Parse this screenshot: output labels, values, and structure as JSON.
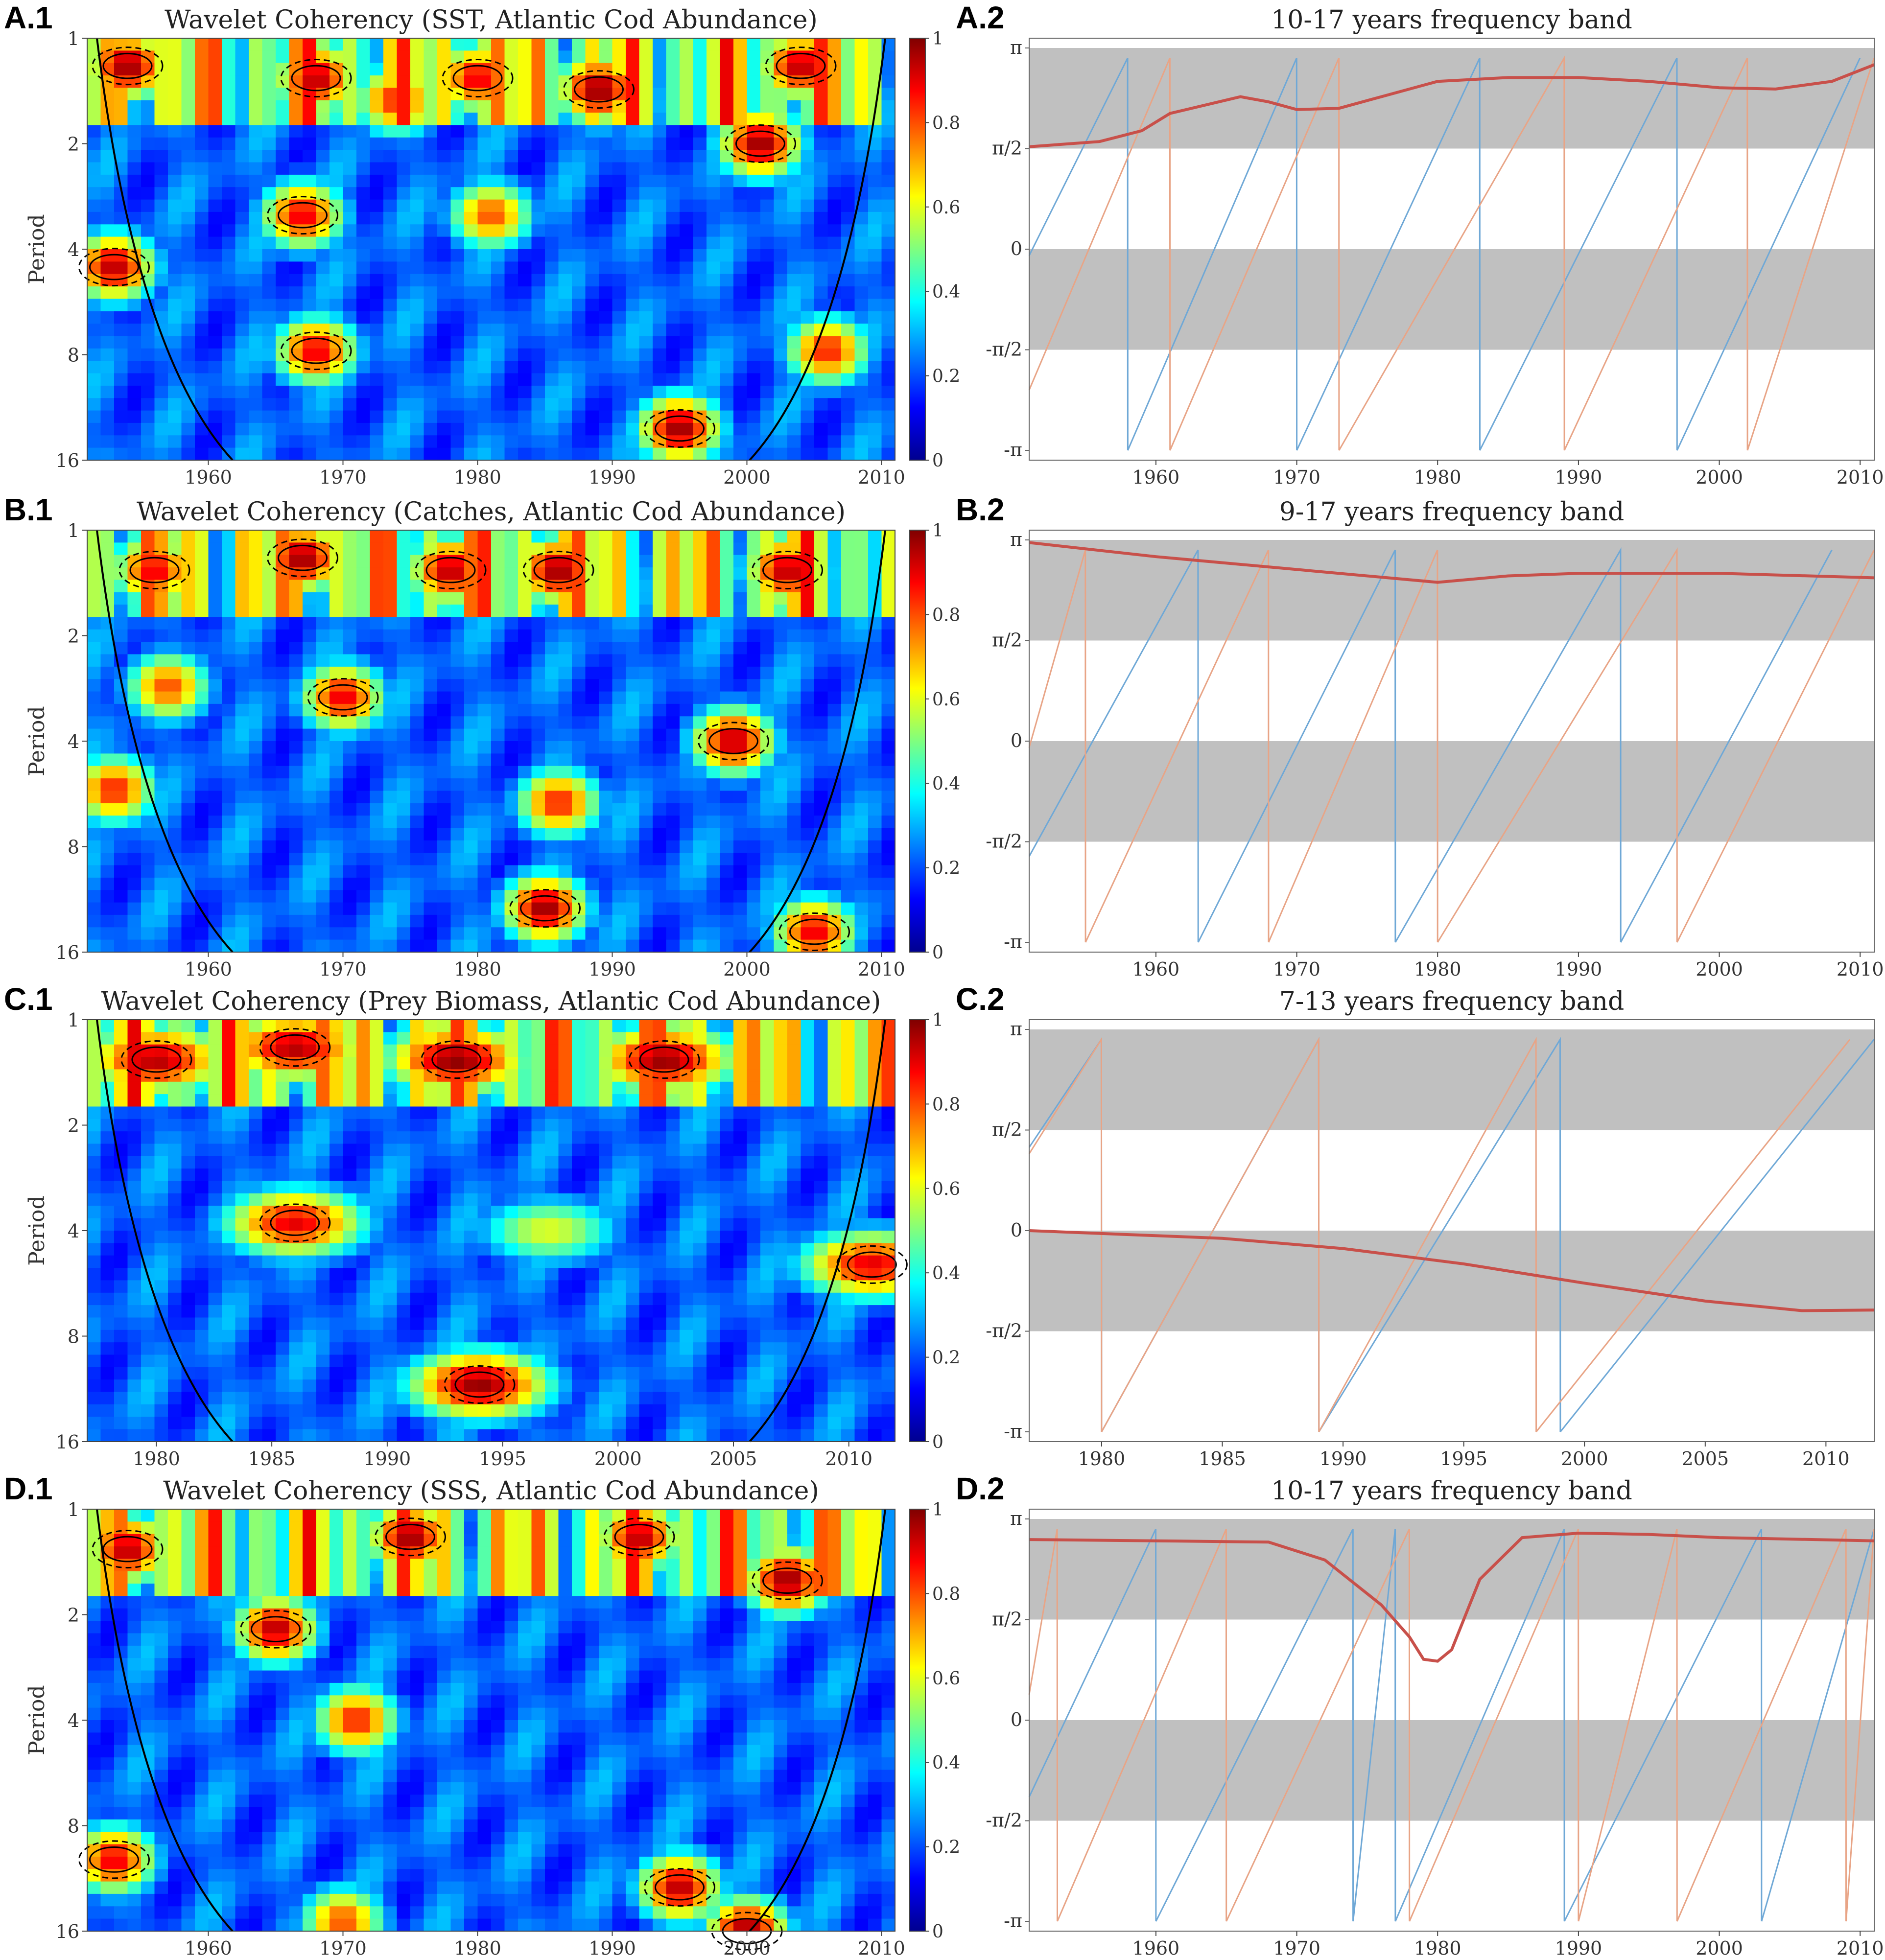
{
  "colors": {
    "phase_band": "#c0c0c0",
    "mean_phase": "#c8504a",
    "series_blue": "#6fa8d6",
    "series_orange": "#e8a486",
    "contour": "#000000"
  },
  "colorbar_ticks": [
    "0",
    "0.2",
    "0.4",
    "0.6",
    "0.8",
    "1"
  ],
  "phase_tick_labels": [
    "π",
    "π/2",
    "0",
    "-π/2",
    "-π"
  ],
  "period_ylabel": "Period",
  "period_ticks": [
    "1",
    "2",
    "4",
    "8",
    "16"
  ],
  "panels": [
    {
      "label": "A.1",
      "title": "Wavelet Coherency (SST, Atlantic Cod Abundance)",
      "xticks": [
        "1960",
        "1970",
        "1980",
        "1990",
        "2000",
        "2010"
      ]
    },
    {
      "label": "A.2",
      "title": "10-17 years frequency band",
      "xticks": [
        "1960",
        "1970",
        "1980",
        "1990",
        "2000",
        "2010"
      ]
    },
    {
      "label": "B.1",
      "title": "Wavelet Coherency (Catches, Atlantic Cod Abundance)",
      "xticks": [
        "1960",
        "1970",
        "1980",
        "1990",
        "2000",
        "2010"
      ]
    },
    {
      "label": "B.2",
      "title": "9-17 years frequency band",
      "xticks": [
        "1960",
        "1970",
        "1980",
        "1990",
        "2000",
        "2010"
      ]
    },
    {
      "label": "C.1",
      "title": "Wavelet Coherency (Prey Biomass, Atlantic Cod Abundance)",
      "xticks": [
        "1980",
        "1985",
        "1990",
        "1995",
        "2000",
        "2005",
        "2010"
      ]
    },
    {
      "label": "C.2",
      "title": "7-13 years frequency band",
      "xticks": [
        "1980",
        "1985",
        "1990",
        "1995",
        "2000",
        "2005",
        "2010"
      ]
    },
    {
      "label": "D.1",
      "title": "Wavelet Coherency (SSS, Atlantic Cod Abundance)",
      "xticks": [
        "1960",
        "1970",
        "1980",
        "1990",
        "2000",
        "2010"
      ]
    },
    {
      "label": "D.2",
      "title": "10-17 years frequency band",
      "xticks": [
        "1960",
        "1970",
        "1980",
        "1990",
        "2000",
        "2010"
      ]
    }
  ],
  "chart_data": [
    {
      "type": "heatmap",
      "title": "Wavelet Coherency (SST, Atlantic Cod Abundance)",
      "ylabel": "Period",
      "x_range": [
        1951,
        2011
      ],
      "y_ticks": [
        1,
        2,
        4,
        8,
        16
      ],
      "colorbar_range": [
        0,
        1
      ],
      "hotspots": [
        {
          "x": 1954,
          "period": 1.2,
          "v": 0.98
        },
        {
          "x": 1968,
          "period": 1.3,
          "v": 0.95
        },
        {
          "x": 1974,
          "period": 1.5,
          "v": 0.85
        },
        {
          "x": 1980,
          "period": 1.3,
          "v": 0.9
        },
        {
          "x": 1989,
          "period": 1.4,
          "v": 0.99
        },
        {
          "x": 2001,
          "period": 2.0,
          "v": 0.98
        },
        {
          "x": 2004,
          "period": 1.2,
          "v": 0.95
        },
        {
          "x": 1967,
          "period": 3.2,
          "v": 0.9
        },
        {
          "x": 1981,
          "period": 3.2,
          "v": 0.8
        },
        {
          "x": 1953,
          "period": 4.5,
          "v": 0.95
        },
        {
          "x": 1968,
          "period": 7.8,
          "v": 0.9
        },
        {
          "x": 2006,
          "period": 7.8,
          "v": 0.85
        },
        {
          "x": 1995,
          "period": 13,
          "v": 0.98
        }
      ]
    },
    {
      "type": "line",
      "title": "10-17 years frequency band",
      "x_range": [
        1951,
        2011
      ],
      "y_range": [
        -3.1416,
        3.1416
      ],
      "series": [
        {
          "role": "mean_phase",
          "x": [
            1951,
            1956,
            1959,
            1961,
            1966,
            1968,
            1970,
            1973,
            1976,
            1980,
            1985,
            1990,
            1995,
            2000,
            2004,
            2008,
            2011
          ],
          "y": [
            1.6,
            1.68,
            1.85,
            2.12,
            2.38,
            2.3,
            2.18,
            2.2,
            2.38,
            2.62,
            2.68,
            2.68,
            2.62,
            2.52,
            2.5,
            2.62,
            2.88
          ]
        },
        {
          "role": "blue",
          "sawtooth_x": [
            1951,
            1958,
            1970,
            1983,
            1997,
            2010
          ],
          "y_start": -0.1
        },
        {
          "role": "orange",
          "sawtooth_x": [
            1951,
            1961,
            1973,
            1989,
            2002,
            2011
          ],
          "y_start": -2.2
        }
      ]
    },
    {
      "type": "heatmap",
      "title": "Wavelet Coherency (Catches, Atlantic Cod Abundance)",
      "ylabel": "Period",
      "x_range": [
        1951,
        2011
      ],
      "y_ticks": [
        1,
        2,
        4,
        8,
        16
      ],
      "colorbar_range": [
        0,
        1
      ],
      "hotspots": [
        {
          "x": 1956,
          "period": 1.3,
          "v": 0.9
        },
        {
          "x": 1967,
          "period": 1.2,
          "v": 0.98
        },
        {
          "x": 1978,
          "period": 1.3,
          "v": 0.95
        },
        {
          "x": 1986,
          "period": 1.3,
          "v": 0.98
        },
        {
          "x": 2003,
          "period": 1.3,
          "v": 0.95
        },
        {
          "x": 1970,
          "period": 3.0,
          "v": 0.9
        },
        {
          "x": 1957,
          "period": 2.8,
          "v": 0.8
        },
        {
          "x": 1999,
          "period": 4.0,
          "v": 0.95
        },
        {
          "x": 1986,
          "period": 6.0,
          "v": 0.85
        },
        {
          "x": 1953,
          "period": 5.5,
          "v": 0.85
        },
        {
          "x": 1985,
          "period": 12,
          "v": 0.98
        },
        {
          "x": 2005,
          "period": 14,
          "v": 0.9
        }
      ]
    },
    {
      "type": "line",
      "title": "9-17 years frequency band",
      "x_range": [
        1951,
        2011
      ],
      "y_range": [
        -3.1416,
        3.1416
      ],
      "series": [
        {
          "role": "mean_phase",
          "x": [
            1951,
            1960,
            1970,
            1980,
            1985,
            1990,
            2000,
            2011
          ],
          "y": [
            3.1,
            2.88,
            2.68,
            2.48,
            2.58,
            2.62,
            2.62,
            2.55
          ]
        },
        {
          "role": "blue",
          "sawtooth_x": [
            1951,
            1963,
            1977,
            1993,
            2008
          ],
          "y_start": -1.8
        },
        {
          "role": "orange",
          "sawtooth_x": [
            1951,
            1955,
            1968,
            1980,
            1997,
            2011
          ],
          "y_start": -0.1
        }
      ]
    },
    {
      "type": "heatmap",
      "title": "Wavelet Coherency (Prey Biomass, Atlantic Cod Abundance)",
      "ylabel": "Period",
      "x_range": [
        1977,
        2012
      ],
      "y_ticks": [
        1,
        2,
        4,
        8,
        16
      ],
      "colorbar_range": [
        0,
        1
      ],
      "hotspots": [
        {
          "x": 1980,
          "period": 1.3,
          "v": 0.95
        },
        {
          "x": 1986,
          "period": 1.2,
          "v": 0.95
        },
        {
          "x": 1993,
          "period": 1.3,
          "v": 0.99
        },
        {
          "x": 2002,
          "period": 1.3,
          "v": 0.98
        },
        {
          "x": 1986,
          "period": 3.8,
          "v": 0.9
        },
        {
          "x": 1997,
          "period": 4.0,
          "v": 0.6
        },
        {
          "x": 2011,
          "period": 5.0,
          "v": 0.9
        },
        {
          "x": 1994,
          "period": 11,
          "v": 0.98
        }
      ]
    },
    {
      "type": "line",
      "title": "7-13 years frequency band",
      "x_range": [
        1977,
        2012
      ],
      "y_range": [
        -3.1416,
        3.1416
      ],
      "series": [
        {
          "role": "mean_phase",
          "x": [
            1977,
            1985,
            1990,
            1995,
            2000,
            2005,
            2009,
            2012
          ],
          "y": [
            0.0,
            -0.12,
            -0.28,
            -0.52,
            -0.82,
            -1.1,
            -1.25,
            -1.24
          ]
        },
        {
          "role": "blue",
          "sawtooth_x": [
            1977,
            1980,
            1989,
            1999,
            2012
          ],
          "y_start": 1.3
        },
        {
          "role": "orange",
          "sawtooth_x": [
            1977,
            1980,
            1989,
            1998,
            2011
          ],
          "y_start": 1.2
        }
      ]
    },
    {
      "type": "heatmap",
      "title": "Wavelet Coherency (SSS, Atlantic Cod Abundance)",
      "ylabel": "Period",
      "x_range": [
        1951,
        2011
      ],
      "y_ticks": [
        1,
        2,
        4,
        8,
        16
      ],
      "colorbar_range": [
        0,
        1
      ],
      "hotspots": [
        {
          "x": 1954,
          "period": 1.3,
          "v": 0.95
        },
        {
          "x": 1965,
          "period": 2.2,
          "v": 0.95
        },
        {
          "x": 1975,
          "period": 1.2,
          "v": 0.98
        },
        {
          "x": 1992,
          "period": 1.2,
          "v": 0.95
        },
        {
          "x": 2003,
          "period": 1.6,
          "v": 0.98
        },
        {
          "x": 1971,
          "period": 4.0,
          "v": 0.85
        },
        {
          "x": 1953,
          "period": 10,
          "v": 0.9
        },
        {
          "x": 1995,
          "period": 12,
          "v": 0.95
        },
        {
          "x": 1970,
          "period": 15,
          "v": 0.8
        },
        {
          "x": 2000,
          "period": 16,
          "v": 0.98
        }
      ]
    },
    {
      "type": "line",
      "title": "10-17 years frequency band",
      "x_range": [
        1951,
        2011
      ],
      "y_range": [
        -3.1416,
        3.1416
      ],
      "series": [
        {
          "role": "mean_phase",
          "x": [
            1951,
            1960,
            1968,
            1972,
            1976,
            1978,
            1979,
            1980,
            1981,
            1983,
            1986,
            1990,
            1995,
            2000,
            2011
          ],
          "y": [
            2.82,
            2.8,
            2.78,
            2.5,
            1.8,
            1.3,
            0.95,
            0.92,
            1.1,
            2.2,
            2.85,
            2.92,
            2.9,
            2.85,
            2.8
          ]
        },
        {
          "role": "blue",
          "sawtooth_x": [
            1951,
            1960,
            1974,
            1977,
            1989,
            2003,
            2011
          ],
          "y_start": -1.2
        },
        {
          "role": "orange",
          "sawtooth_x": [
            1951,
            1953,
            1965,
            1978,
            1990,
            1997,
            2009,
            2011
          ],
          "y_start": 0.4
        }
      ]
    }
  ]
}
